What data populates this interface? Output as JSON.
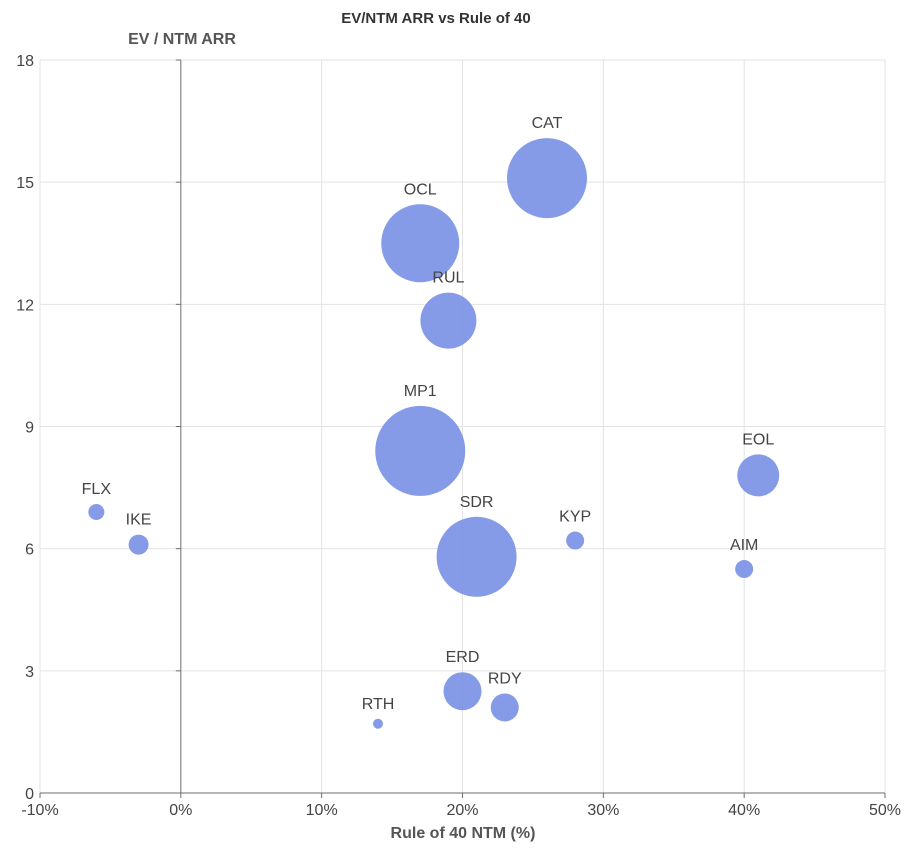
{
  "chart_data": {
    "type": "scatter",
    "title": "EV/NTM ARR vs Rule of 40",
    "ylabel": "EV / NTM ARR",
    "xlabel": "Rule of 40 NTM (%)",
    "xlim": [
      -10,
      50
    ],
    "ylim": [
      0,
      18
    ],
    "x_ticks": [
      -10,
      0,
      10,
      20,
      30,
      40,
      50
    ],
    "x_tick_labels": [
      "-10%",
      "0%",
      "10%",
      "20%",
      "30%",
      "40%",
      "50%"
    ],
    "y_ticks": [
      0,
      3,
      6,
      9,
      12,
      15,
      18
    ],
    "y_tick_labels": [
      "0",
      "3",
      "6",
      "9",
      "12",
      "15",
      "18"
    ],
    "grid": true,
    "bubble_color": "#7b93e6",
    "points": [
      {
        "label": "CAT",
        "x": 26,
        "y": 15.1,
        "size": 40
      },
      {
        "label": "OCL",
        "x": 17,
        "y": 13.5,
        "size": 39
      },
      {
        "label": "RUL",
        "x": 19,
        "y": 11.6,
        "size": 28
      },
      {
        "label": "MP1",
        "x": 17,
        "y": 8.4,
        "size": 45
      },
      {
        "label": "EOL",
        "x": 41,
        "y": 7.8,
        "size": 21
      },
      {
        "label": "FLX",
        "x": -6,
        "y": 6.9,
        "size": 8
      },
      {
        "label": "IKE",
        "x": -3,
        "y": 6.1,
        "size": 10
      },
      {
        "label": "SDR",
        "x": 21,
        "y": 5.8,
        "size": 40
      },
      {
        "label": "KYP",
        "x": 28,
        "y": 6.2,
        "size": 9
      },
      {
        "label": "AIM",
        "x": 40,
        "y": 5.5,
        "size": 9
      },
      {
        "label": "ERD",
        "x": 20,
        "y": 2.5,
        "size": 19
      },
      {
        "label": "RDY",
        "x": 23,
        "y": 2.1,
        "size": 14
      },
      {
        "label": "RTH",
        "x": 14,
        "y": 1.7,
        "size": 5
      }
    ]
  }
}
